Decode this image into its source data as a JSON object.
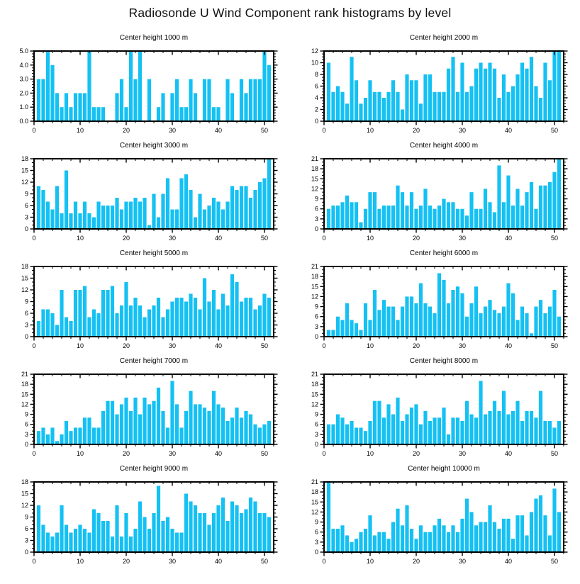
{
  "page_title": "Radiosonde U Wind Component rank histograms by level",
  "colors": {
    "bar": "#15C1F3",
    "axis": "#000000",
    "background": "#FFFFFF"
  },
  "axes": {
    "x_tick_labels": [
      0,
      10,
      20,
      30,
      40,
      50
    ],
    "x_minor_step": 2,
    "xlim": [
      0,
      52
    ],
    "x_start_rank": 1
  },
  "chart_data": [
    {
      "type": "bar",
      "title": "Center height 1000 m",
      "ylim": [
        0,
        5
      ],
      "ytick_step": 1,
      "y_decimals": 1,
      "xlabel": "",
      "ylabel": "",
      "values": [
        3,
        3,
        5,
        4,
        2,
        1,
        2,
        1,
        2,
        2,
        2,
        5,
        1,
        1,
        1,
        0,
        0,
        2,
        3,
        1,
        5,
        3,
        5,
        0,
        3,
        0,
        1,
        2,
        0,
        2,
        3,
        1,
        1,
        3,
        2,
        0,
        3,
        3,
        1,
        1,
        0,
        3,
        2,
        0,
        3,
        2,
        3,
        3,
        3,
        5,
        4
      ]
    },
    {
      "type": "bar",
      "title": "Center height 2000 m",
      "ylim": [
        0,
        12
      ],
      "ytick_step": 2,
      "y_decimals": 0,
      "xlabel": "",
      "ylabel": "",
      "values": [
        10,
        5,
        6,
        5,
        3,
        11,
        7,
        3,
        4,
        7,
        5,
        5,
        4,
        5,
        7,
        5,
        2,
        8,
        7,
        7,
        3,
        8,
        8,
        5,
        5,
        5,
        9,
        11,
        5,
        10,
        5,
        6,
        9,
        10,
        9,
        10,
        9,
        4,
        8,
        5,
        6,
        8,
        10,
        9,
        11,
        6,
        4,
        10,
        7,
        12,
        12
      ]
    },
    {
      "type": "bar",
      "title": "Center height 3000 m",
      "ylim": [
        0,
        18
      ],
      "ytick_step": 3,
      "y_decimals": 0,
      "xlabel": "",
      "ylabel": "",
      "values": [
        11,
        10,
        7,
        5,
        11,
        4,
        15,
        4,
        7,
        4,
        7,
        4,
        3,
        7,
        6,
        6,
        6,
        8,
        5,
        7,
        7,
        8,
        7,
        8,
        1,
        9,
        3,
        9,
        13,
        5,
        5,
        13,
        14,
        10,
        3,
        9,
        5,
        6,
        8,
        7,
        5,
        7,
        11,
        10,
        11,
        11,
        8,
        10,
        12,
        13,
        18
      ]
    },
    {
      "type": "bar",
      "title": "Center height 4000 m",
      "ylim": [
        0,
        21
      ],
      "ytick_step": 3,
      "y_decimals": 0,
      "xlabel": "",
      "ylabel": "",
      "values": [
        6,
        7,
        7,
        8,
        10,
        8,
        8,
        2,
        6,
        11,
        11,
        6,
        7,
        7,
        7,
        13,
        11,
        7,
        11,
        6,
        7,
        12,
        7,
        6,
        7,
        9,
        8,
        8,
        6,
        6,
        4,
        11,
        6,
        6,
        12,
        8,
        5,
        19,
        8,
        16,
        7,
        12,
        7,
        11,
        14,
        6,
        13,
        13,
        14,
        17,
        21
      ]
    },
    {
      "type": "bar",
      "title": "Center height 5000 m",
      "ylim": [
        0,
        18
      ],
      "ytick_step": 3,
      "y_decimals": 0,
      "xlabel": "",
      "ylabel": "",
      "values": [
        4,
        7,
        7,
        6,
        3,
        12,
        5,
        4,
        12,
        12,
        13,
        5,
        7,
        6,
        12,
        12,
        13,
        6,
        8,
        14,
        8,
        10,
        8,
        5,
        7,
        8,
        10,
        5,
        7,
        9,
        10,
        10,
        9,
        11,
        10,
        7,
        15,
        9,
        12,
        7,
        11,
        8,
        16,
        14,
        9,
        10,
        10,
        7,
        8,
        11,
        10
      ]
    },
    {
      "type": "bar",
      "title": "Center height 6000 m",
      "ylim": [
        0,
        21
      ],
      "ytick_step": 3,
      "y_decimals": 0,
      "xlabel": "",
      "ylabel": "",
      "values": [
        2,
        2,
        6,
        5,
        10,
        5,
        4,
        2,
        10,
        5,
        14,
        8,
        11,
        9,
        9,
        5,
        9,
        12,
        12,
        10,
        16,
        10,
        9,
        7,
        19,
        17,
        10,
        14,
        15,
        13,
        6,
        10,
        15,
        7,
        9,
        11,
        8,
        7,
        9,
        16,
        13,
        5,
        9,
        7,
        1,
        9,
        11,
        7,
        9,
        14,
        6
      ]
    },
    {
      "type": "bar",
      "title": "Center height 7000 m",
      "ylim": [
        0,
        21
      ],
      "ytick_step": 3,
      "y_decimals": 0,
      "xlabel": "",
      "ylabel": "",
      "values": [
        4,
        5,
        3,
        5,
        1,
        3,
        7,
        4,
        5,
        5,
        8,
        8,
        5,
        5,
        10,
        13,
        13,
        9,
        12,
        14,
        10,
        14,
        9,
        14,
        12,
        13,
        17,
        10,
        5,
        19,
        12,
        5,
        10,
        16,
        12,
        12,
        11,
        10,
        16,
        12,
        11,
        7,
        8,
        11,
        8,
        10,
        9,
        6,
        5,
        6,
        7
      ]
    },
    {
      "type": "bar",
      "title": "Center height 8000 m",
      "ylim": [
        0,
        21
      ],
      "ytick_step": 3,
      "y_decimals": 0,
      "xlabel": "",
      "ylabel": "",
      "values": [
        6,
        6,
        9,
        8,
        6,
        7,
        5,
        5,
        4,
        7,
        13,
        13,
        8,
        12,
        9,
        14,
        7,
        9,
        11,
        12,
        6,
        10,
        7,
        8,
        8,
        11,
        3,
        8,
        8,
        7,
        13,
        9,
        8,
        19,
        9,
        10,
        13,
        10,
        16,
        9,
        10,
        13,
        7,
        10,
        10,
        8,
        16,
        7,
        7,
        5,
        7
      ]
    },
    {
      "type": "bar",
      "title": "Center height 9000 m",
      "ylim": [
        0,
        18
      ],
      "ytick_step": 3,
      "y_decimals": 0,
      "xlabel": "",
      "ylabel": "",
      "values": [
        12,
        7,
        5,
        4,
        5,
        12,
        7,
        5,
        6,
        7,
        6,
        5,
        11,
        10,
        8,
        8,
        4,
        12,
        4,
        10,
        4,
        6,
        13,
        9,
        6,
        10,
        17,
        8,
        9,
        6,
        5,
        5,
        15,
        13,
        12,
        10,
        10,
        7,
        10,
        12,
        14,
        8,
        13,
        12,
        10,
        11,
        14,
        13,
        10,
        10,
        9
      ]
    },
    {
      "type": "bar",
      "title": "Center height 10000 m",
      "ylim": [
        0,
        21
      ],
      "ytick_step": 3,
      "y_decimals": 0,
      "xlabel": "",
      "ylabel": "",
      "values": [
        21,
        7,
        7,
        8,
        5,
        3,
        4,
        6,
        7,
        11,
        5,
        6,
        6,
        4,
        9,
        13,
        8,
        14,
        7,
        4,
        8,
        6,
        6,
        8,
        10,
        8,
        6,
        8,
        6,
        10,
        16,
        12,
        8,
        9,
        9,
        14,
        9,
        7,
        10,
        10,
        4,
        11,
        11,
        5,
        12,
        16,
        17,
        11,
        5,
        19,
        12
      ]
    }
  ]
}
